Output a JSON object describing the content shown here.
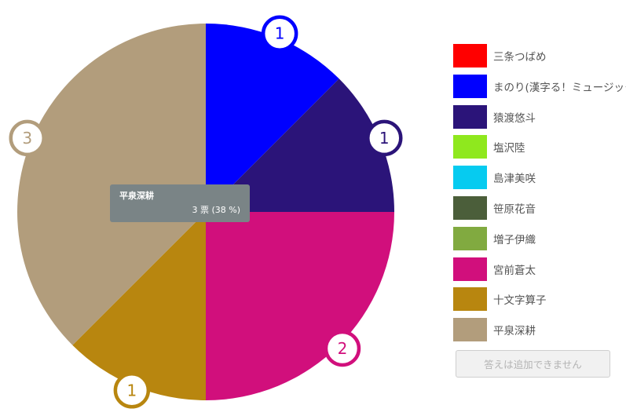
{
  "chart_data": {
    "type": "pie",
    "slices": [
      {
        "name": "三条つばめ",
        "value": 0,
        "color": "#ff0000"
      },
      {
        "name": "まのり(漢字る！ミュージック)",
        "value": 1,
        "color": "#0000ff"
      },
      {
        "name": "猿渡悠斗",
        "value": 1,
        "color": "#2b1479"
      },
      {
        "name": "塩沢陸",
        "value": 0,
        "color": "#8fe81e"
      },
      {
        "name": "島津美咲",
        "value": 0,
        "color": "#06cbf0"
      },
      {
        "name": "笹原花音",
        "value": 0,
        "color": "#4b5e3a"
      },
      {
        "name": "増子伊織",
        "value": 0,
        "color": "#81aa40"
      },
      {
        "name": "宮前蒼太",
        "value": 2,
        "color": "#d10f7c"
      },
      {
        "name": "十文字算子",
        "value": 1,
        "color": "#b8860f"
      },
      {
        "name": "平泉深耕",
        "value": 3,
        "color": "#b29d7c"
      }
    ],
    "legend_position": "right"
  },
  "tooltip": {
    "name": "平泉深耕",
    "value_text": "3 票 (38 %)"
  },
  "add_button": {
    "label": "答えは追加できません"
  }
}
